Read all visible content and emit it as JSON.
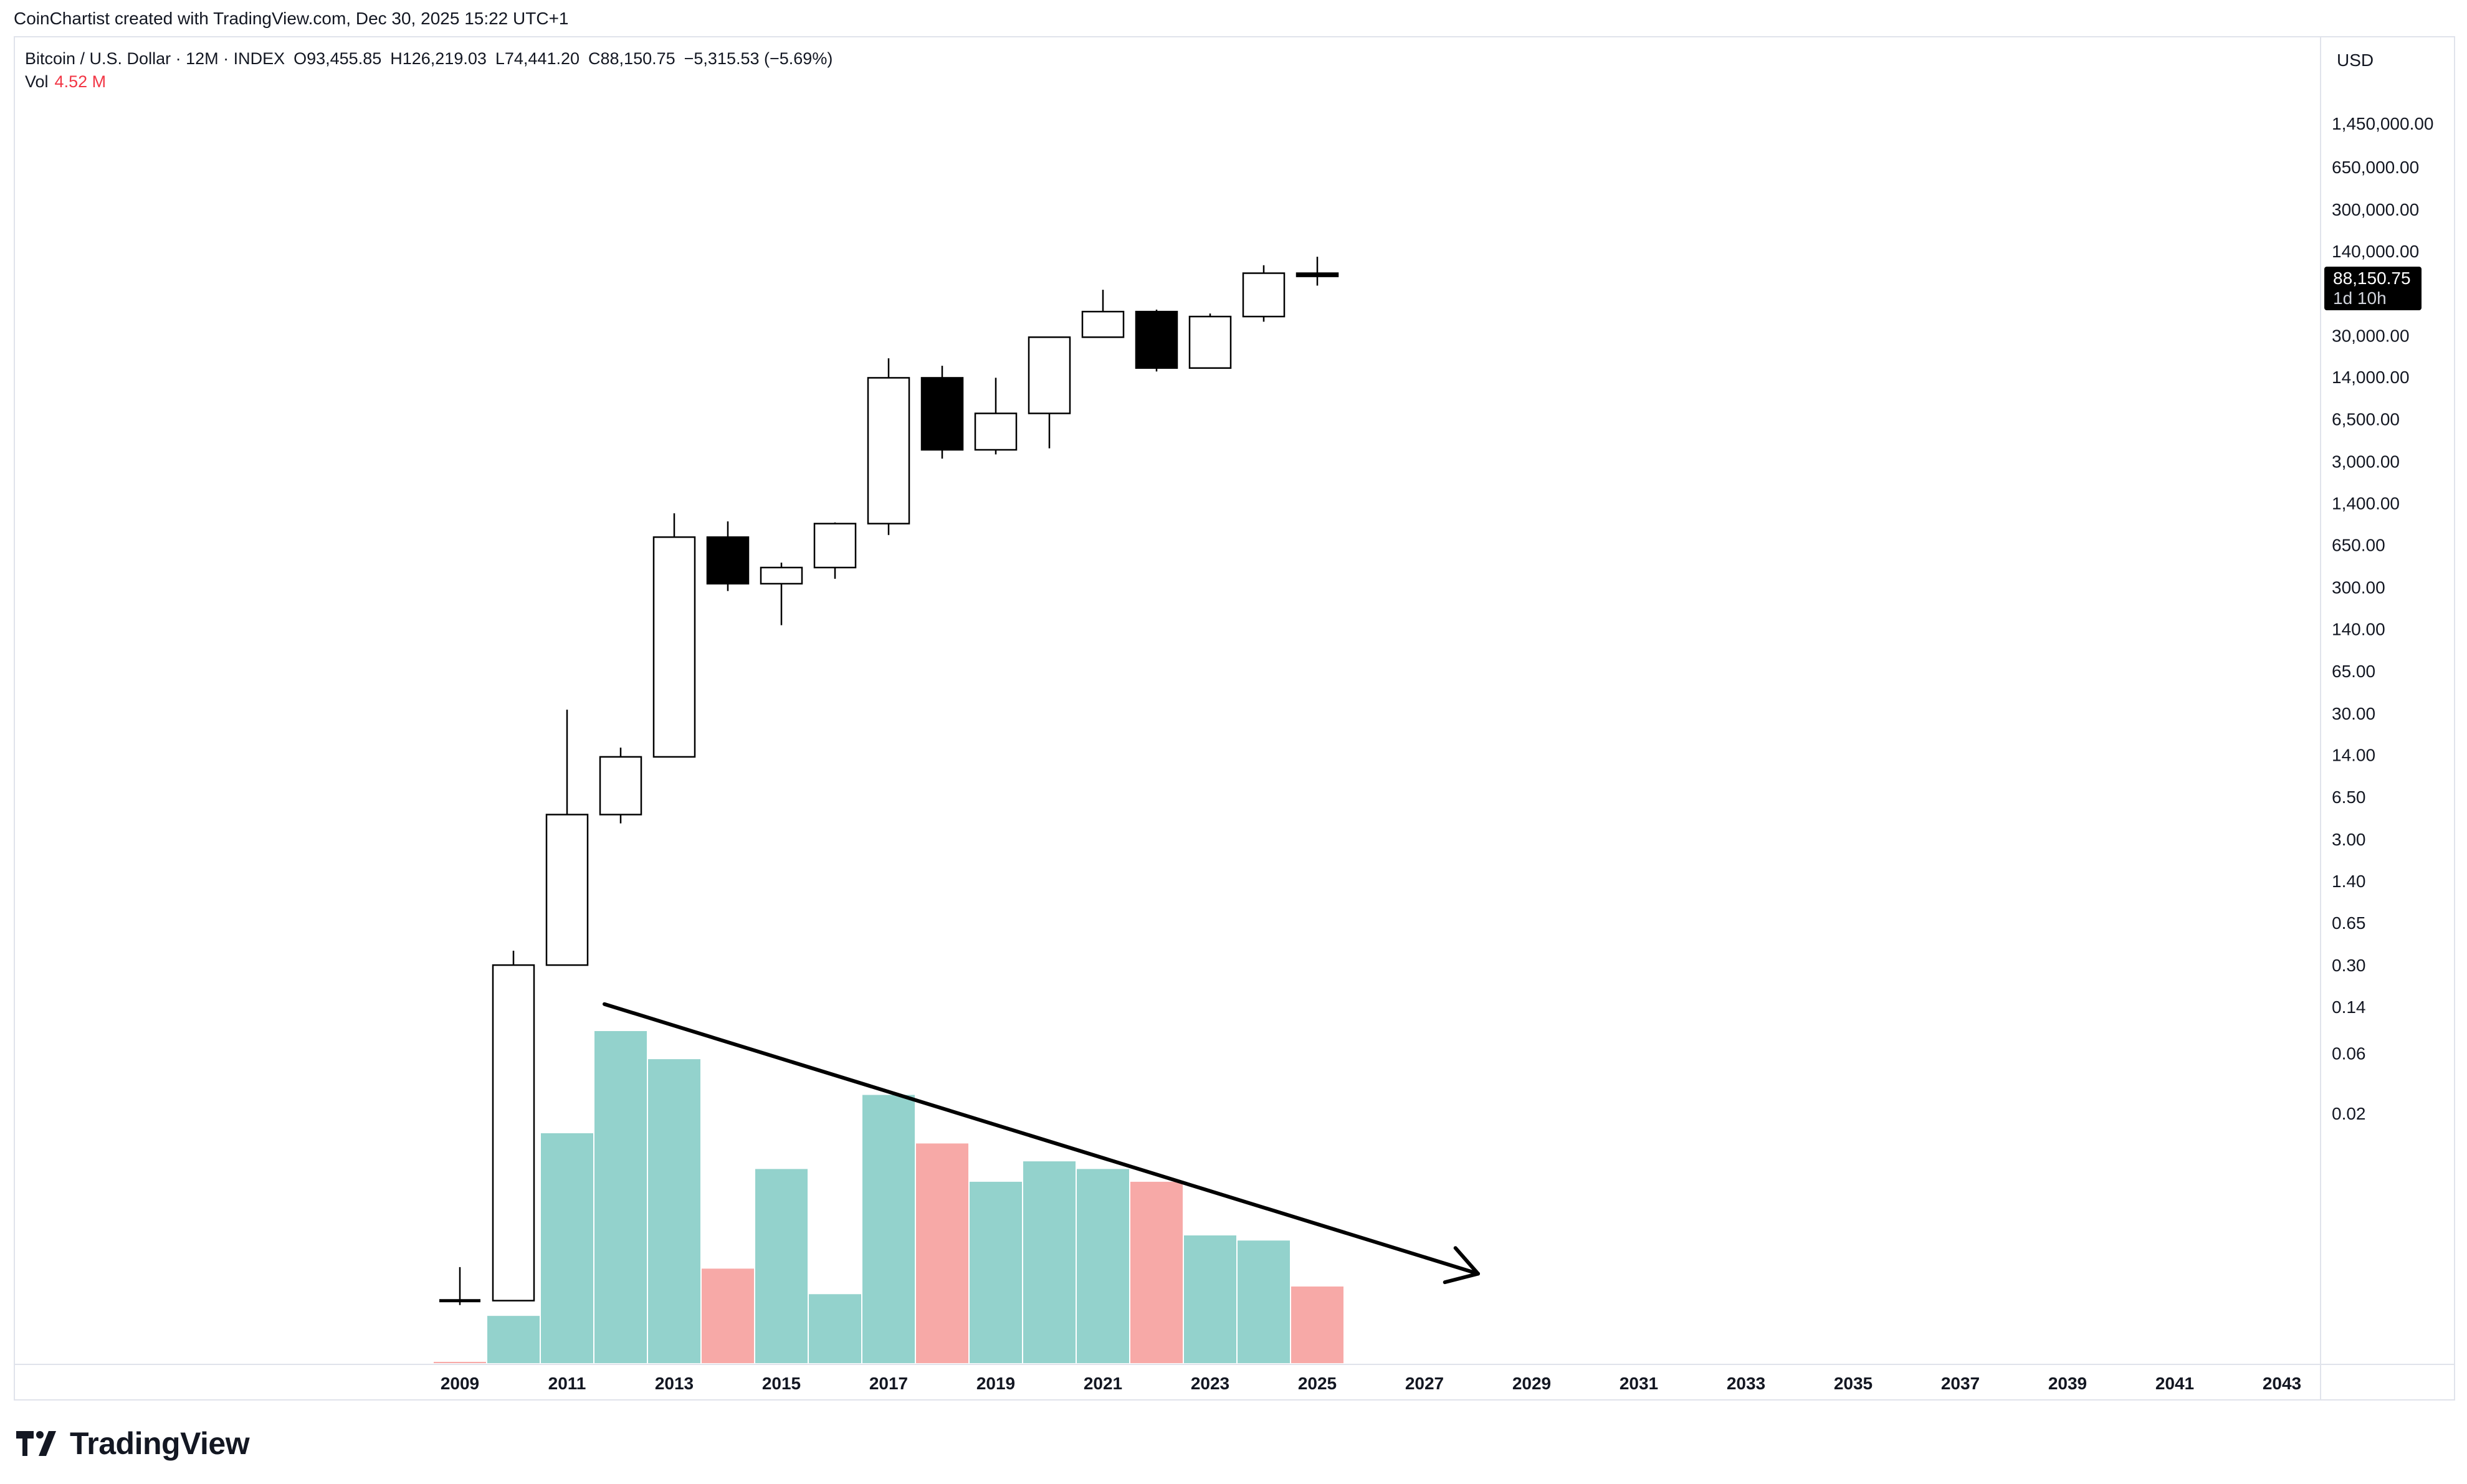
{
  "header": {
    "credit": "CoinChartist created with TradingView.com, Dec 30, 2025 15:22 UTC+1"
  },
  "legend": {
    "symbol": "Bitcoin / U.S. Dollar · 12M · INDEX",
    "open": "O93,455.85",
    "high": "H126,219.03",
    "low": "L74,441.20",
    "close": "C88,150.75",
    "change": "−5,315.53 (−5.69%)",
    "vol_label": "Vol",
    "vol_value": "4.52 M"
  },
  "price_tag": {
    "price": "88,150.75",
    "countdown": "1d 10h"
  },
  "brand": {
    "name": "TradingView"
  },
  "colors": {
    "up_candle": "#ffffff",
    "down_candle": "#000000",
    "vol_up": "#93d2cc",
    "vol_down": "#f7a9a7",
    "grid_border": "#e0e3eb"
  },
  "chart_data": {
    "type": "candlestick",
    "timeframe": "12M",
    "currency": "USD",
    "y_scale": "log",
    "y_tick_labels": [
      "1,450,000.00",
      "650,000.00",
      "300,000.00",
      "140,000.00",
      "30,000.00",
      "14,000.00",
      "6,500.00",
      "3,000.00",
      "1,400.00",
      "650.00",
      "300.00",
      "140.00",
      "65.00",
      "30.00",
      "14.00",
      "6.50",
      "3.00",
      "1.40",
      "0.65",
      "0.30",
      "0.14",
      "0.06",
      "0.02"
    ],
    "x_tick_labels": [
      "2009",
      "2011",
      "2013",
      "2015",
      "2017",
      "2019",
      "2021",
      "2023",
      "2025",
      "2027",
      "2029",
      "2031",
      "2033",
      "2035",
      "2037",
      "2039",
      "2041",
      "2043"
    ],
    "x_range": [
      2009,
      2043
    ],
    "candles": [
      {
        "year": 2009,
        "open": 0.00065,
        "high": 0.0012,
        "low": 0.0006,
        "close": 0.00065
      },
      {
        "year": 2010,
        "open": 0.00065,
        "high": 0.39,
        "low": 0.00065,
        "close": 0.3
      },
      {
        "year": 2011,
        "open": 0.3,
        "high": 32,
        "low": 0.3,
        "close": 4.7
      },
      {
        "year": 2012,
        "open": 4.7,
        "high": 16,
        "low": 4.0,
        "close": 13.5
      },
      {
        "year": 2013,
        "open": 13.5,
        "high": 1160,
        "low": 13.5,
        "close": 750
      },
      {
        "year": 2014,
        "open": 750,
        "high": 1000,
        "low": 280,
        "close": 320
      },
      {
        "year": 2015,
        "open": 320,
        "high": 470,
        "low": 150,
        "close": 430
      },
      {
        "year": 2016,
        "open": 430,
        "high": 980,
        "low": 350,
        "close": 960
      },
      {
        "year": 2017,
        "open": 960,
        "high": 19700,
        "low": 780,
        "close": 13800
      },
      {
        "year": 2018,
        "open": 13800,
        "high": 17200,
        "low": 3150,
        "close": 3700
      },
      {
        "year": 2019,
        "open": 3700,
        "high": 13800,
        "low": 3400,
        "close": 7200
      },
      {
        "year": 2020,
        "open": 7200,
        "high": 29300,
        "low": 3800,
        "close": 29000
      },
      {
        "year": 2021,
        "open": 29000,
        "high": 69000,
        "low": 28800,
        "close": 46300
      },
      {
        "year": 2022,
        "open": 46300,
        "high": 48000,
        "low": 15500,
        "close": 16500
      },
      {
        "year": 2023,
        "open": 16500,
        "high": 44700,
        "low": 16500,
        "close": 42300
      },
      {
        "year": 2024,
        "open": 42300,
        "high": 108000,
        "low": 38500,
        "close": 93450
      },
      {
        "year": 2025,
        "open": 93455.85,
        "high": 126219.03,
        "low": 74441.2,
        "close": 88150.75
      }
    ],
    "volume": [
      {
        "year": 2009,
        "value": 0.05,
        "dir": "down"
      },
      {
        "year": 2010,
        "value": 1.85,
        "dir": "up"
      },
      {
        "year": 2011,
        "value": 9.0,
        "dir": "up"
      },
      {
        "year": 2012,
        "value": 13.0,
        "dir": "up"
      },
      {
        "year": 2013,
        "value": 11.9,
        "dir": "up"
      },
      {
        "year": 2014,
        "value": 3.7,
        "dir": "down"
      },
      {
        "year": 2015,
        "value": 7.6,
        "dir": "up"
      },
      {
        "year": 2016,
        "value": 2.7,
        "dir": "up"
      },
      {
        "year": 2017,
        "value": 10.5,
        "dir": "up"
      },
      {
        "year": 2018,
        "value": 8.6,
        "dir": "down"
      },
      {
        "year": 2019,
        "value": 7.1,
        "dir": "up"
      },
      {
        "year": 2020,
        "value": 7.9,
        "dir": "up"
      },
      {
        "year": 2021,
        "value": 7.6,
        "dir": "up"
      },
      {
        "year": 2022,
        "value": 7.1,
        "dir": "down"
      },
      {
        "year": 2023,
        "value": 5.0,
        "dir": "up"
      },
      {
        "year": 2024,
        "value": 4.8,
        "dir": "up"
      },
      {
        "year": 2025,
        "value": 3.0,
        "dir": "down"
      }
    ],
    "annotation": {
      "type": "trendline-arrow",
      "from": {
        "year": 2011.0,
        "vol": 14.3
      },
      "to": {
        "year": 2028.0,
        "vol": 3.5
      }
    }
  }
}
